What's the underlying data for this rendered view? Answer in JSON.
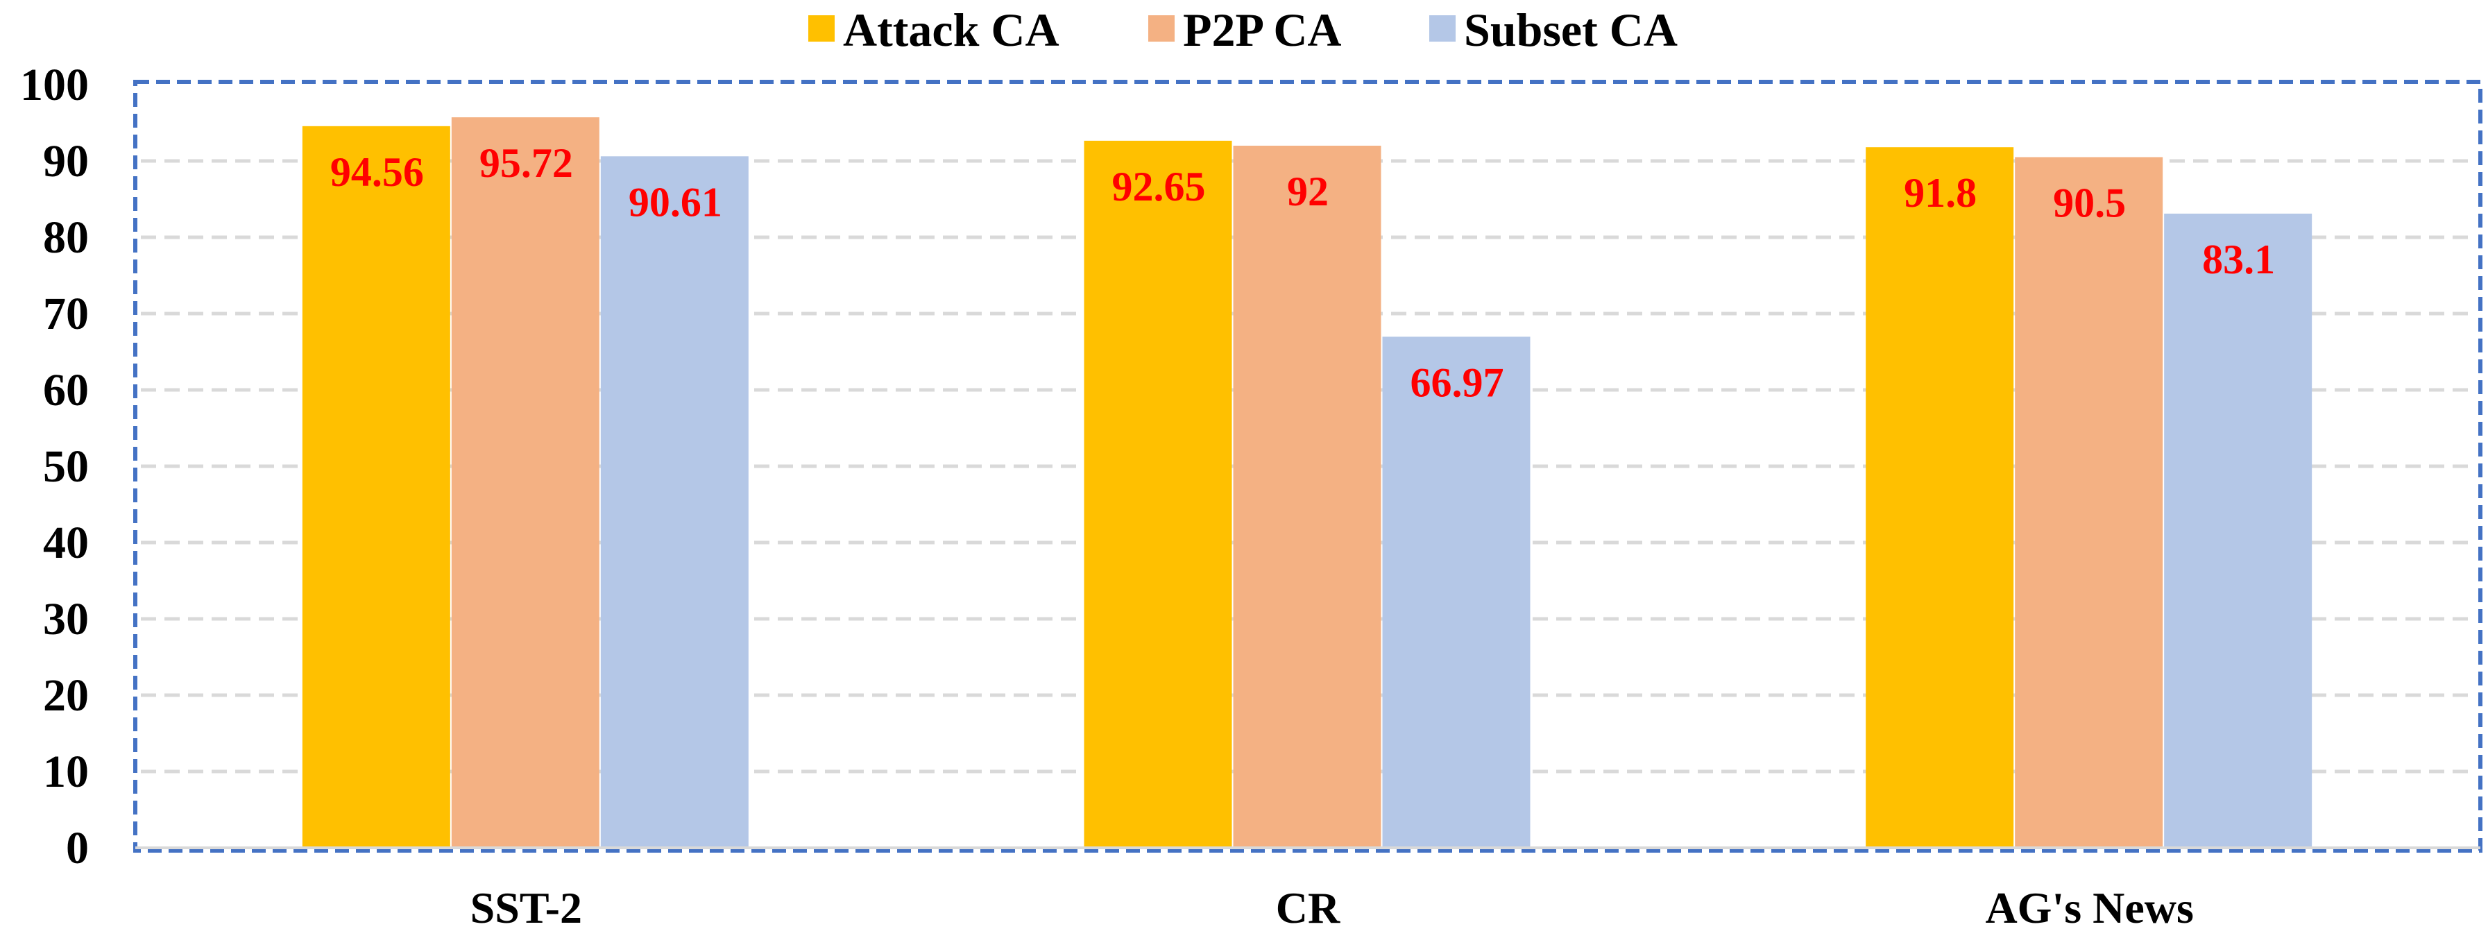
{
  "chart_data": {
    "type": "bar",
    "categories": [
      "SST-2",
      "CR",
      "AG's News"
    ],
    "series": [
      {
        "name": "Attack CA",
        "values": [
          94.56,
          92.65,
          91.8
        ],
        "color": "#FFC000"
      },
      {
        "name": "P2P CA",
        "values": [
          95.72,
          92,
          90.5
        ],
        "color": "#F4B183"
      },
      {
        "name": "Subset CA",
        "values": [
          90.61,
          66.97,
          83.1
        ],
        "color": "#B4C7E7"
      }
    ],
    "data_labels": [
      [
        "94.56",
        "95.72",
        "90.61"
      ],
      [
        "92.65",
        "92",
        "66.97"
      ],
      [
        "91.8",
        "90.5",
        "83.1"
      ]
    ],
    "data_label_color": "#FF0000",
    "ylim": [
      0,
      100
    ],
    "yticks": [
      "0",
      "10",
      "20",
      "30",
      "40",
      "50",
      "60",
      "70",
      "80",
      "90",
      "100"
    ],
    "grid": true,
    "grid_color": "#D9D9D9",
    "plot_border_color": "#4472C4",
    "legend": "top",
    "title": "",
    "xlabel": "",
    "ylabel": ""
  }
}
